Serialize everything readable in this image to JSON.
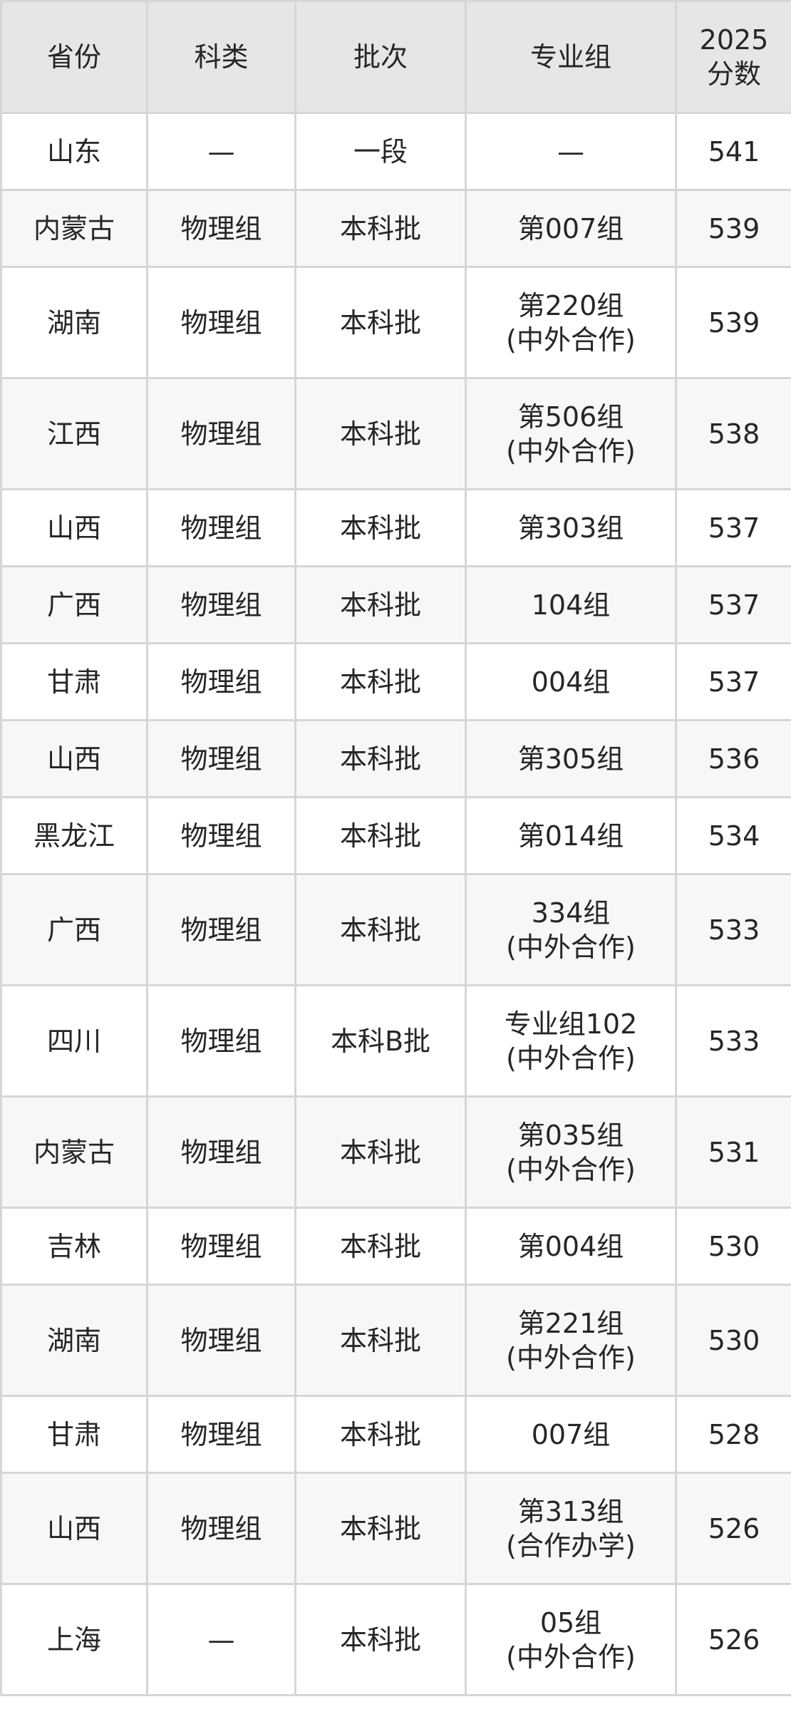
{
  "table": {
    "headers": [
      [
        "省份"
      ],
      [
        "科类"
      ],
      [
        "批次"
      ],
      [
        "专业组"
      ],
      [
        "2025",
        "分数"
      ]
    ],
    "rows": [
      [
        [
          "山东"
        ],
        [
          "—"
        ],
        [
          "一段"
        ],
        [
          "—"
        ],
        [
          "541"
        ]
      ],
      [
        [
          "内蒙古"
        ],
        [
          "物理组"
        ],
        [
          "本科批"
        ],
        [
          "第007组"
        ],
        [
          "539"
        ]
      ],
      [
        [
          "湖南"
        ],
        [
          "物理组"
        ],
        [
          "本科批"
        ],
        [
          "第220组",
          "(中外合作)"
        ],
        [
          "539"
        ]
      ],
      [
        [
          "江西"
        ],
        [
          "物理组"
        ],
        [
          "本科批"
        ],
        [
          "第506组",
          "(中外合作)"
        ],
        [
          "538"
        ]
      ],
      [
        [
          "山西"
        ],
        [
          "物理组"
        ],
        [
          "本科批"
        ],
        [
          "第303组"
        ],
        [
          "537"
        ]
      ],
      [
        [
          "广西"
        ],
        [
          "物理组"
        ],
        [
          "本科批"
        ],
        [
          "104组"
        ],
        [
          "537"
        ]
      ],
      [
        [
          "甘肃"
        ],
        [
          "物理组"
        ],
        [
          "本科批"
        ],
        [
          "004组"
        ],
        [
          "537"
        ]
      ],
      [
        [
          "山西"
        ],
        [
          "物理组"
        ],
        [
          "本科批"
        ],
        [
          "第305组"
        ],
        [
          "536"
        ]
      ],
      [
        [
          "黑龙江"
        ],
        [
          "物理组"
        ],
        [
          "本科批"
        ],
        [
          "第014组"
        ],
        [
          "534"
        ]
      ],
      [
        [
          "广西"
        ],
        [
          "物理组"
        ],
        [
          "本科批"
        ],
        [
          "334组",
          "(中外合作)"
        ],
        [
          "533"
        ]
      ],
      [
        [
          "四川"
        ],
        [
          "物理组"
        ],
        [
          "本科B批"
        ],
        [
          "专业组102",
          "(中外合作)"
        ],
        [
          "533"
        ]
      ],
      [
        [
          "内蒙古"
        ],
        [
          "物理组"
        ],
        [
          "本科批"
        ],
        [
          "第035组",
          "(中外合作)"
        ],
        [
          "531"
        ]
      ],
      [
        [
          "吉林"
        ],
        [
          "物理组"
        ],
        [
          "本科批"
        ],
        [
          "第004组"
        ],
        [
          "530"
        ]
      ],
      [
        [
          "湖南"
        ],
        [
          "物理组"
        ],
        [
          "本科批"
        ],
        [
          "第221组",
          "(中外合作)"
        ],
        [
          "530"
        ]
      ],
      [
        [
          "甘肃"
        ],
        [
          "物理组"
        ],
        [
          "本科批"
        ],
        [
          "007组"
        ],
        [
          "528"
        ]
      ],
      [
        [
          "山西"
        ],
        [
          "物理组"
        ],
        [
          "本科批"
        ],
        [
          "第313组",
          "(合作办学)"
        ],
        [
          "526"
        ]
      ],
      [
        [
          "上海"
        ],
        [
          "—"
        ],
        [
          "本科批"
        ],
        [
          "05组",
          "(中外合作)"
        ],
        [
          "526"
        ]
      ]
    ]
  },
  "colors": {
    "header_bg": "#e6e6e6",
    "alt_row_bg": "#f7f7f7",
    "border": "#d6d6d6",
    "text": "#262626"
  }
}
